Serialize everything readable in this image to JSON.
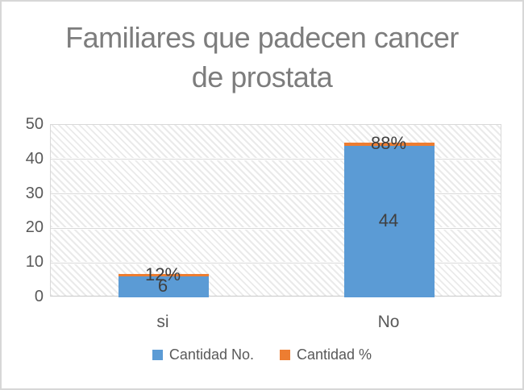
{
  "chart_data": {
    "type": "bar",
    "stacked": true,
    "title": "Familiares que padecen cancer de prostata",
    "title_lines": [
      "Familiares que padecen cancer",
      "de prostata"
    ],
    "categories": [
      "si",
      "No"
    ],
    "series": [
      {
        "name": "Cantidad No.",
        "color": "#5B9BD5",
        "values": [
          6,
          44
        ],
        "data_labels": [
          "6",
          "44"
        ]
      },
      {
        "name": "Cantidad %",
        "color": "#ED7D31",
        "values": [
          0.12,
          0.88
        ],
        "data_labels": [
          "12%",
          "88%"
        ]
      }
    ],
    "xlabel": "",
    "ylabel": "",
    "ylim": [
      0,
      50
    ],
    "yticks": [
      0,
      10,
      20,
      30,
      40,
      50
    ],
    "grid": "horizontal",
    "legend_position": "bottom",
    "plot_background": "diagonal-hatch"
  },
  "colors": {
    "series_blue": "#5B9BD5",
    "series_orange": "#ED7D31",
    "gridline": "#d9d9d9",
    "hatch": "#eaeaea",
    "title_text": "#7d7d7d",
    "axis_text": "#595959",
    "data_label_text": "#404040",
    "outer_border": "#d7d7d7"
  }
}
